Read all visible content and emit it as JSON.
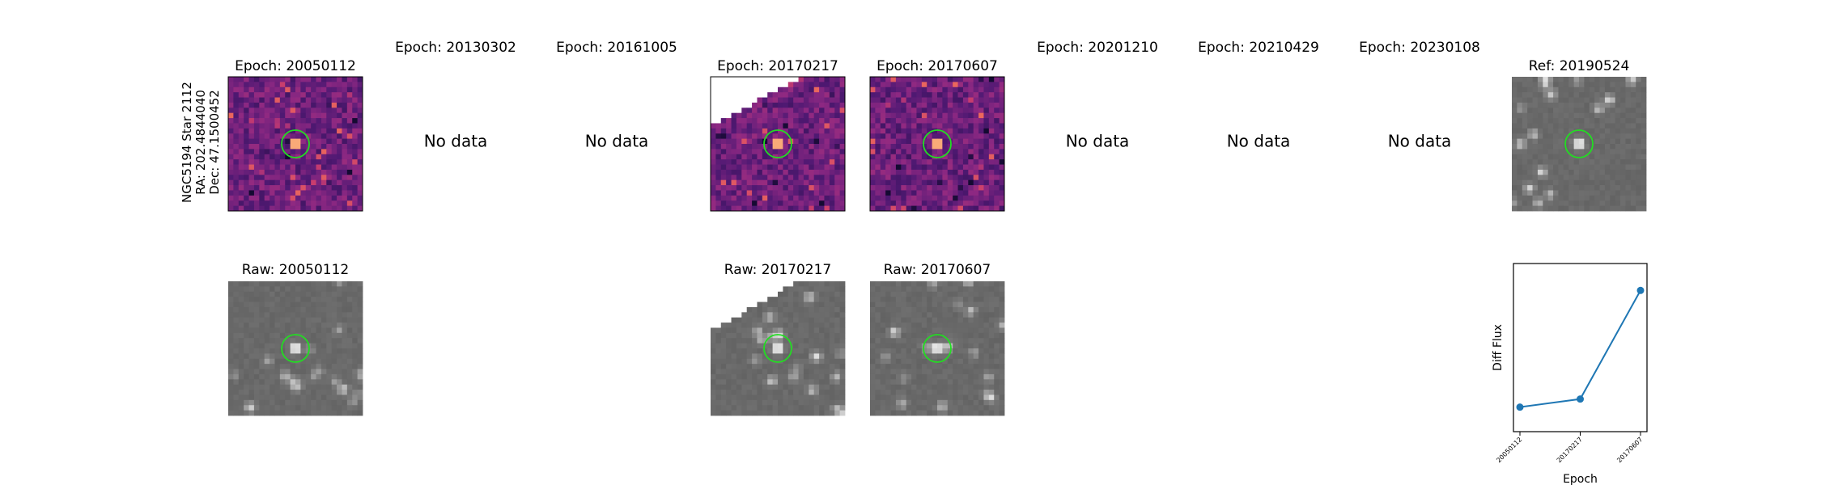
{
  "side_label": [
    "NGC5194 Star 2112",
    "RA: 202.4844040",
    "Dec: 47.1500452"
  ],
  "top_row": [
    {
      "title": "Epoch: 20050112"
    },
    {
      "title": "Epoch: 20130302",
      "message": "No data"
    },
    {
      "title": "Epoch: 20161005",
      "message": "No data"
    },
    {
      "title": "Epoch: 20170217"
    },
    {
      "title": "Epoch: 20170607"
    },
    {
      "title": "Epoch: 20201210",
      "message": "No data"
    },
    {
      "title": "Epoch: 20210429",
      "message": "No data"
    },
    {
      "title": "Epoch: 20230108",
      "message": "No data"
    },
    {
      "title": "Ref: 20190524"
    }
  ],
  "bottom_row": [
    {
      "title": "Raw: 20050112"
    },
    {
      "title": "Raw: 20170217"
    },
    {
      "title": "Raw: 20170607"
    }
  ],
  "chart_data": {
    "type": "line",
    "categories": [
      "20050112",
      "20170217",
      "20170607"
    ],
    "values": [
      0.146,
      0.194,
      0.84
    ],
    "color": "#1f77b4",
    "ylim": [
      0,
      1
    ],
    "xlabel": "Epoch",
    "ylabel": "Diff Flux"
  }
}
